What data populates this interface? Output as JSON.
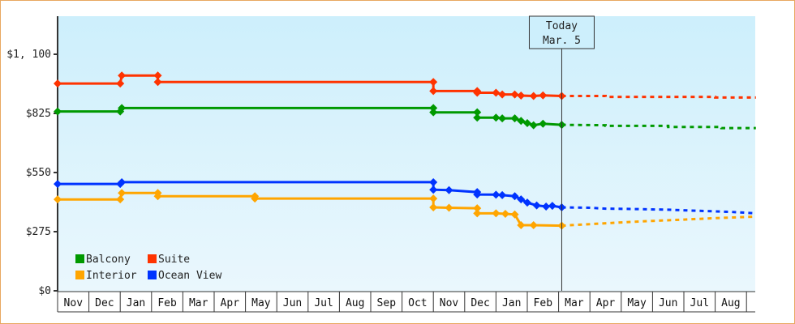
{
  "chart_data": {
    "type": "line",
    "title": "",
    "xlabel": "",
    "ylabel": "",
    "ylim": [
      0,
      1300
    ],
    "yticks": [
      {
        "value": 0,
        "label": "$0"
      },
      {
        "value": 275,
        "label": "$275"
      },
      {
        "value": 550,
        "label": "$550"
      },
      {
        "value": 825,
        "label": "$825"
      },
      {
        "value": 1100,
        "label": "$1, 100"
      }
    ],
    "x_months": [
      "Nov",
      "Dec",
      "Jan",
      "Feb",
      "Mar",
      "Apr",
      "May",
      "Jun",
      "Jul",
      "Aug",
      "Sep",
      "Oct",
      "Nov",
      "Dec",
      "Jan",
      "Feb",
      "Mar",
      "Apr",
      "May",
      "Jun",
      "Jul",
      "Aug"
    ],
    "today": {
      "label_line1": "Today",
      "label_line2": "Mar. 5",
      "x_month_index": 16.1
    },
    "legend": [
      {
        "name": "Balcony",
        "color": "#009900"
      },
      {
        "name": "Suite",
        "color": "#ff3300"
      },
      {
        "name": "Interior",
        "color": "#ffa500"
      },
      {
        "name": "Ocean View",
        "color": "#0033ff"
      }
    ],
    "series": [
      {
        "name": "Suite",
        "color": "#ff3300",
        "history": [
          [
            0,
            964
          ],
          [
            2.0,
            964
          ],
          [
            2.05,
            1001
          ],
          [
            3.2,
            1001
          ],
          [
            3.2,
            971
          ],
          [
            12.0,
            971
          ],
          [
            12.0,
            929
          ],
          [
            13.4,
            929
          ],
          [
            13.4,
            921
          ],
          [
            14.0,
            921
          ],
          [
            14.2,
            913
          ],
          [
            14.6,
            913
          ],
          [
            14.8,
            908
          ],
          [
            15.2,
            906
          ],
          [
            15.5,
            909
          ],
          [
            16.1,
            906
          ]
        ],
        "forecast": [
          [
            16.1,
            906
          ],
          [
            17.5,
            906
          ],
          [
            17.5,
            902
          ],
          [
            21.0,
            902
          ],
          [
            21.0,
            899
          ],
          [
            22.3,
            899
          ]
        ]
      },
      {
        "name": "Balcony",
        "color": "#009900",
        "history": [
          [
            0,
            834
          ],
          [
            2.0,
            834
          ],
          [
            2.05,
            850
          ],
          [
            12.0,
            850
          ],
          [
            12.0,
            830
          ],
          [
            13.4,
            830
          ],
          [
            13.4,
            805
          ],
          [
            14.0,
            805
          ],
          [
            14.2,
            802
          ],
          [
            14.6,
            802
          ],
          [
            14.8,
            790
          ],
          [
            15.0,
            780
          ],
          [
            15.2,
            770
          ],
          [
            15.5,
            777
          ],
          [
            16.1,
            772
          ]
        ],
        "forecast": [
          [
            16.1,
            772
          ],
          [
            17.5,
            770
          ],
          [
            17.5,
            767
          ],
          [
            19.5,
            767
          ],
          [
            19.5,
            762
          ],
          [
            21.2,
            762
          ],
          [
            21.2,
            757
          ],
          [
            22.3,
            757
          ]
        ]
      },
      {
        "name": "Ocean View",
        "color": "#0033ff",
        "history": [
          [
            0,
            497
          ],
          [
            2.0,
            497
          ],
          [
            2.05,
            505
          ],
          [
            12.0,
            505
          ],
          [
            12.0,
            470
          ],
          [
            12.5,
            468
          ],
          [
            13.4,
            459
          ],
          [
            13.4,
            448
          ],
          [
            14.0,
            447
          ],
          [
            14.2,
            445
          ],
          [
            14.6,
            440
          ],
          [
            14.8,
            425
          ],
          [
            15.0,
            410
          ],
          [
            15.3,
            397
          ],
          [
            15.6,
            392
          ],
          [
            15.8,
            395
          ],
          [
            16.1,
            388
          ]
        ],
        "forecast": [
          [
            16.1,
            388
          ],
          [
            17.0,
            386
          ],
          [
            17.5,
            382
          ],
          [
            18.5,
            380
          ],
          [
            19.5,
            377
          ],
          [
            20.5,
            372
          ],
          [
            21.5,
            367
          ],
          [
            22.3,
            360
          ]
        ]
      },
      {
        "name": "Interior",
        "color": "#ffa500",
        "history": [
          [
            0,
            425
          ],
          [
            2.0,
            425
          ],
          [
            2.05,
            455
          ],
          [
            3.2,
            455
          ],
          [
            3.2,
            440
          ],
          [
            6.3,
            440
          ],
          [
            6.3,
            429
          ],
          [
            12.0,
            429
          ],
          [
            12.0,
            388
          ],
          [
            12.5,
            386
          ],
          [
            13.4,
            384
          ],
          [
            13.4,
            360
          ],
          [
            14.0,
            360
          ],
          [
            14.3,
            358
          ],
          [
            14.6,
            355
          ],
          [
            14.8,
            305
          ],
          [
            15.2,
            305
          ],
          [
            16.1,
            303
          ]
        ],
        "forecast": [
          [
            16.1,
            303
          ],
          [
            17.0,
            310
          ],
          [
            18.0,
            318
          ],
          [
            19.0,
            325
          ],
          [
            20.0,
            331
          ],
          [
            21.0,
            338
          ],
          [
            22.3,
            345
          ]
        ]
      }
    ]
  }
}
